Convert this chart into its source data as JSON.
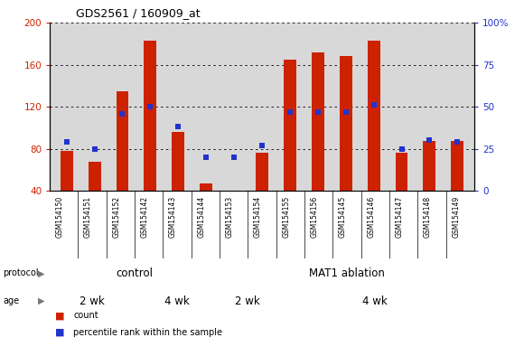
{
  "title": "GDS2561 / 160909_at",
  "samples": [
    "GSM154150",
    "GSM154151",
    "GSM154152",
    "GSM154142",
    "GSM154143",
    "GSM154144",
    "GSM154153",
    "GSM154154",
    "GSM154155",
    "GSM154156",
    "GSM154145",
    "GSM154146",
    "GSM154147",
    "GSM154148",
    "GSM154149"
  ],
  "counts": [
    78,
    68,
    135,
    183,
    96,
    47,
    40,
    76,
    165,
    172,
    168,
    183,
    76,
    87,
    87
  ],
  "percentiles": [
    29,
    25,
    46,
    50,
    38,
    20,
    20,
    27,
    47,
    47,
    47,
    51,
    25,
    30,
    29
  ],
  "ylim_left": [
    40,
    200
  ],
  "ylim_right": [
    0,
    100
  ],
  "yticks_left": [
    40,
    80,
    120,
    160,
    200
  ],
  "yticks_right": [
    0,
    25,
    50,
    75,
    100
  ],
  "bar_color": "#cc2200",
  "dot_color": "#2233cc",
  "bg_color": "#d8d8d8",
  "protocol_control_label": "control",
  "protocol_ablation_label": "MAT1 ablation",
  "protocol_control_color": "#bbeeaa",
  "protocol_ablation_color": "#44cc44",
  "age_2wk_color": "#ee88ee",
  "age_4wk_color": "#cc44cc",
  "age_label_2wk": "2 wk",
  "age_label_4wk": "4 wk",
  "control_count": 6,
  "ablation_count": 9,
  "control_2wk_count": 3,
  "control_4wk_count": 3,
  "ablation_2wk_count": 2,
  "ablation_4wk_count": 7,
  "legend_count_label": "count",
  "legend_pct_label": "percentile rank within the sample"
}
